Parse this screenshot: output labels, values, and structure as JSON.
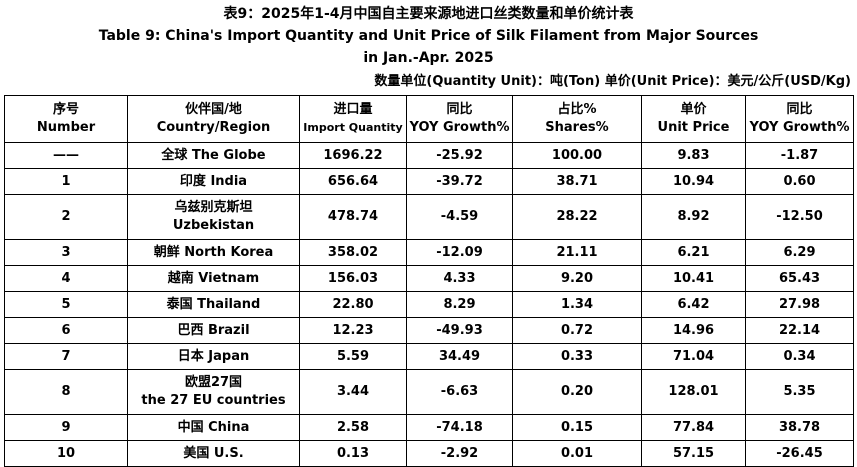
{
  "titles": {
    "cn": "表9：2025年1-4月中国自主要来源地进口丝类数量和单价统计表",
    "en_line1": "Table 9: China's Import Quantity and Unit Price of Silk Filament from Major Sources",
    "en_line2": "in Jan.-Apr. 2025"
  },
  "unit_line": "数量单位(Quantity Unit)：吨(Ton)  单价(Unit Price)：美元/公斤(USD/Kg)",
  "headers": {
    "no": {
      "cn": "序号",
      "en": "Number"
    },
    "country": {
      "cn": "伙伴国/地",
      "en": "Country/Region"
    },
    "quantity": {
      "cn": "进口量",
      "en": "Import Quantity"
    },
    "yoy1": {
      "cn": "同比",
      "en": "YOY Growth%"
    },
    "share": {
      "cn": "占比%",
      "en": "Shares%"
    },
    "price": {
      "cn": "单价",
      "en": "Unit Price"
    },
    "yoy2": {
      "cn": "同比",
      "en": "YOY Growth%"
    }
  },
  "rows": [
    {
      "no": "——",
      "country1": "全球 The Globe",
      "country2": "",
      "qty": "1696.22",
      "yoy": "-25.92",
      "share": "100.00",
      "price": "9.83",
      "yoy2": "-1.87"
    },
    {
      "no": "1",
      "country1": "印度 India",
      "country2": "",
      "qty": "656.64",
      "yoy": "-39.72",
      "share": "38.71",
      "price": "10.94",
      "yoy2": "0.60"
    },
    {
      "no": "2",
      "country1": "乌兹别克斯坦",
      "country2": "Uzbekistan",
      "qty": "478.74",
      "yoy": "-4.59",
      "share": "28.22",
      "price": "8.92",
      "yoy2": "-12.50"
    },
    {
      "no": "3",
      "country1": "朝鲜  North Korea",
      "country2": "",
      "qty": "358.02",
      "yoy": "-12.09",
      "share": "21.11",
      "price": "6.21",
      "yoy2": "6.29"
    },
    {
      "no": "4",
      "country1": "越南 Vietnam",
      "country2": "",
      "qty": "156.03",
      "yoy": "4.33",
      "share": "9.20",
      "price": "10.41",
      "yoy2": "65.43"
    },
    {
      "no": "5",
      "country1": "泰国 Thailand",
      "country2": "",
      "qty": "22.80",
      "yoy": "8.29",
      "share": "1.34",
      "price": "6.42",
      "yoy2": "27.98"
    },
    {
      "no": "6",
      "country1": "巴西 Brazil",
      "country2": "",
      "qty": "12.23",
      "yoy": "-49.93",
      "share": "0.72",
      "price": "14.96",
      "yoy2": "22.14"
    },
    {
      "no": "7",
      "country1": "日本 Japan",
      "country2": "",
      "qty": "5.59",
      "yoy": "34.49",
      "share": "0.33",
      "price": "71.04",
      "yoy2": "0.34"
    },
    {
      "no": "8",
      "country1": "欧盟27国",
      "country2": "the 27 EU countries",
      "qty": "3.44",
      "yoy": "-6.63",
      "share": "0.20",
      "price": "128.01",
      "yoy2": "5.35"
    },
    {
      "no": "9",
      "country1": "中国 China",
      "country2": "",
      "qty": "2.58",
      "yoy": "-74.18",
      "share": "0.15",
      "price": "77.84",
      "yoy2": "38.78"
    },
    {
      "no": "10",
      "country1": "美国 U.S.",
      "country2": "",
      "qty": "0.13",
      "yoy": "-2.92",
      "share": "0.01",
      "price": "57.15",
      "yoy2": "-26.45"
    }
  ]
}
